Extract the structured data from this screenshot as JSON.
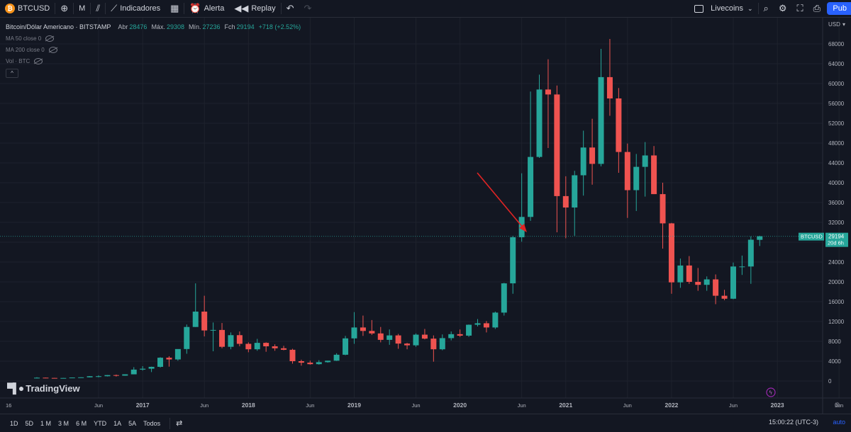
{
  "toolbar": {
    "symbol": "BTCUSD",
    "symbol_logo": "₿",
    "interval": "M",
    "indicators_label": "Indicadores",
    "alert_label": "Alerta",
    "replay_label": "Replay",
    "layout_name": "Livecoins",
    "publish_label": "Pub"
  },
  "legend": {
    "title": "Bitcoin/Dólar Americano · BITSTAMP",
    "open_label": "Abr",
    "open": "28476",
    "high_label": "Máx.",
    "high": "29308",
    "low_label": "Mín.",
    "low": "27236",
    "close_label": "Fch",
    "close": "29194",
    "change": "+718 (+2.52%)",
    "indicators": [
      "MA 50 close 0",
      "MA 200 close 0",
      "Vol · BTC"
    ],
    "collapse_symbol": "^"
  },
  "price_axis": {
    "currency": "USD",
    "ticks": [
      "68000",
      "64000",
      "60000",
      "56000",
      "52000",
      "48000",
      "44000",
      "40000",
      "36000",
      "32000",
      "28000",
      "24000",
      "20000",
      "16000",
      "12000",
      "8000",
      "4000",
      "0"
    ],
    "price_label": "BTCUSD",
    "last_price": "29194",
    "countdown": "20d 6h"
  },
  "time_axis": {
    "labels": [
      "16",
      "Jun",
      "2017",
      "Jun",
      "2018",
      "Jun",
      "2019",
      "Jun",
      "2020",
      "Jun",
      "2021",
      "Jun",
      "2022",
      "Jun",
      "2023",
      "Jun"
    ]
  },
  "bottom": {
    "timeframes": [
      "1D",
      "5D",
      "1 M",
      "3 M",
      "6 M",
      "YTD",
      "1A",
      "5A",
      "Todos"
    ],
    "clock": "15:00:22 (UTC-3)",
    "auto_label": "auto"
  },
  "branding": "TradingView",
  "colors": {
    "up": "#26a69a",
    "down": "#ef5350",
    "bg": "#131722",
    "grid": "#1e222d",
    "accent": "#2962ff",
    "annotation_arrow": "#e02424"
  },
  "chart_data": {
    "type": "candlestick",
    "title": "Bitcoin/Dólar Americano · BITSTAMP",
    "interval": "1M",
    "ylim": [
      0,
      70000
    ],
    "grid": true,
    "annotation": "red arrow pointing to Jan 2021 candle",
    "last_price": 29194,
    "candles": [
      {
        "t": "2016-06",
        "o": 520,
        "h": 770,
        "l": 520,
        "c": 670
      },
      {
        "t": "2016-07",
        "o": 670,
        "h": 690,
        "l": 600,
        "c": 620
      },
      {
        "t": "2016-08",
        "o": 620,
        "h": 630,
        "l": 540,
        "c": 575
      },
      {
        "t": "2016-09",
        "o": 575,
        "h": 620,
        "l": 580,
        "c": 610
      },
      {
        "t": "2016-10",
        "o": 610,
        "h": 720,
        "l": 600,
        "c": 700
      },
      {
        "t": "2016-11",
        "o": 700,
        "h": 760,
        "l": 690,
        "c": 745
      },
      {
        "t": "2016-12",
        "o": 745,
        "h": 980,
        "l": 740,
        "c": 965
      },
      {
        "t": "2017-01",
        "o": 965,
        "h": 1150,
        "l": 750,
        "c": 965
      },
      {
        "t": "2017-02",
        "o": 965,
        "h": 1200,
        "l": 920,
        "c": 1190
      },
      {
        "t": "2017-03",
        "o": 1190,
        "h": 1300,
        "l": 900,
        "c": 1080
      },
      {
        "t": "2017-04",
        "o": 1080,
        "h": 1360,
        "l": 1060,
        "c": 1350
      },
      {
        "t": "2017-05",
        "o": 1350,
        "h": 2800,
        "l": 1350,
        "c": 2300
      },
      {
        "t": "2017-06",
        "o": 2300,
        "h": 3000,
        "l": 2100,
        "c": 2480
      },
      {
        "t": "2017-07",
        "o": 2480,
        "h": 2900,
        "l": 1800,
        "c": 2860
      },
      {
        "t": "2017-08",
        "o": 2860,
        "h": 4800,
        "l": 2700,
        "c": 4700
      },
      {
        "t": "2017-09",
        "o": 4700,
        "h": 5000,
        "l": 2900,
        "c": 4350
      },
      {
        "t": "2017-10",
        "o": 4350,
        "h": 6400,
        "l": 4100,
        "c": 6450
      },
      {
        "t": "2017-11",
        "o": 6450,
        "h": 11400,
        "l": 5500,
        "c": 10900
      },
      {
        "t": "2017-12",
        "o": 10900,
        "h": 19700,
        "l": 10900,
        "c": 14000
      },
      {
        "t": "2018-01",
        "o": 14000,
        "h": 17200,
        "l": 9000,
        "c": 10200
      },
      {
        "t": "2018-02",
        "o": 10200,
        "h": 11800,
        "l": 6000,
        "c": 10300
      },
      {
        "t": "2018-03",
        "o": 10300,
        "h": 11700,
        "l": 6600,
        "c": 6900
      },
      {
        "t": "2018-04",
        "o": 6900,
        "h": 9800,
        "l": 6400,
        "c": 9250
      },
      {
        "t": "2018-05",
        "o": 9250,
        "h": 10000,
        "l": 7000,
        "c": 7500
      },
      {
        "t": "2018-06",
        "o": 7500,
        "h": 7800,
        "l": 5800,
        "c": 6400
      },
      {
        "t": "2018-07",
        "o": 6400,
        "h": 8500,
        "l": 6100,
        "c": 7700
      },
      {
        "t": "2018-08",
        "o": 7700,
        "h": 7800,
        "l": 5900,
        "c": 7000
      },
      {
        "t": "2018-09",
        "o": 7000,
        "h": 7400,
        "l": 6100,
        "c": 6600
      },
      {
        "t": "2018-10",
        "o": 6600,
        "h": 7100,
        "l": 6200,
        "c": 6300
      },
      {
        "t": "2018-11",
        "o": 6300,
        "h": 6500,
        "l": 3500,
        "c": 4000
      },
      {
        "t": "2018-12",
        "o": 4000,
        "h": 4300,
        "l": 3100,
        "c": 3700
      },
      {
        "t": "2019-01",
        "o": 3700,
        "h": 4100,
        "l": 3300,
        "c": 3400
      },
      {
        "t": "2019-02",
        "o": 3400,
        "h": 4200,
        "l": 3300,
        "c": 3800
      },
      {
        "t": "2019-03",
        "o": 3800,
        "h": 4100,
        "l": 3700,
        "c": 4100
      },
      {
        "t": "2019-04",
        "o": 4100,
        "h": 5600,
        "l": 4050,
        "c": 5300
      },
      {
        "t": "2019-05",
        "o": 5300,
        "h": 9100,
        "l": 5200,
        "c": 8600
      },
      {
        "t": "2019-06",
        "o": 8600,
        "h": 13900,
        "l": 7500,
        "c": 10800
      },
      {
        "t": "2019-07",
        "o": 10800,
        "h": 13200,
        "l": 9100,
        "c": 10100
      },
      {
        "t": "2019-08",
        "o": 10100,
        "h": 12300,
        "l": 9300,
        "c": 9600
      },
      {
        "t": "2019-09",
        "o": 9600,
        "h": 10900,
        "l": 7800,
        "c": 8300
      },
      {
        "t": "2019-10",
        "o": 8300,
        "h": 10400,
        "l": 7300,
        "c": 9200
      },
      {
        "t": "2019-11",
        "o": 9200,
        "h": 9500,
        "l": 6500,
        "c": 7550
      },
      {
        "t": "2019-12",
        "o": 7550,
        "h": 7700,
        "l": 6400,
        "c": 7200
      },
      {
        "t": "2020-01",
        "o": 7200,
        "h": 9600,
        "l": 6900,
        "c": 9350
      },
      {
        "t": "2020-02",
        "o": 9350,
        "h": 10500,
        "l": 8400,
        "c": 8550
      },
      {
        "t": "2020-03",
        "o": 8550,
        "h": 9200,
        "l": 3900,
        "c": 6400
      },
      {
        "t": "2020-04",
        "o": 6400,
        "h": 9400,
        "l": 6200,
        "c": 8650
      },
      {
        "t": "2020-05",
        "o": 8650,
        "h": 10000,
        "l": 8200,
        "c": 9450
      },
      {
        "t": "2020-06",
        "o": 9450,
        "h": 10400,
        "l": 8900,
        "c": 9150
      },
      {
        "t": "2020-07",
        "o": 9150,
        "h": 11400,
        "l": 8900,
        "c": 11350
      },
      {
        "t": "2020-08",
        "o": 11350,
        "h": 12500,
        "l": 11000,
        "c": 11650
      },
      {
        "t": "2020-09",
        "o": 11650,
        "h": 12100,
        "l": 9800,
        "c": 10800
      },
      {
        "t": "2020-10",
        "o": 10800,
        "h": 14000,
        "l": 10500,
        "c": 13800
      },
      {
        "t": "2020-11",
        "o": 13800,
        "h": 19800,
        "l": 13200,
        "c": 19700
      },
      {
        "t": "2020-12",
        "o": 19700,
        "h": 29300,
        "l": 17600,
        "c": 29000
      },
      {
        "t": "2021-01",
        "o": 29000,
        "h": 41900,
        "l": 28100,
        "c": 33100
      },
      {
        "t": "2021-02",
        "o": 33100,
        "h": 58400,
        "l": 32300,
        "c": 45200
      },
      {
        "t": "2021-03",
        "o": 45200,
        "h": 61800,
        "l": 45000,
        "c": 58800
      },
      {
        "t": "2021-04",
        "o": 58800,
        "h": 64900,
        "l": 47000,
        "c": 57800
      },
      {
        "t": "2021-05",
        "o": 57800,
        "h": 59600,
        "l": 30000,
        "c": 37300
      },
      {
        "t": "2021-06",
        "o": 37300,
        "h": 41300,
        "l": 28800,
        "c": 35000
      },
      {
        "t": "2021-07",
        "o": 35000,
        "h": 42400,
        "l": 29300,
        "c": 41500
      },
      {
        "t": "2021-08",
        "o": 41500,
        "h": 50500,
        "l": 37400,
        "c": 47100
      },
      {
        "t": "2021-09",
        "o": 47100,
        "h": 52900,
        "l": 39600,
        "c": 43800
      },
      {
        "t": "2021-10",
        "o": 43800,
        "h": 67000,
        "l": 43300,
        "c": 61300
      },
      {
        "t": "2021-11",
        "o": 61300,
        "h": 69000,
        "l": 53500,
        "c": 57000
      },
      {
        "t": "2021-12",
        "o": 57000,
        "h": 59100,
        "l": 42000,
        "c": 46200
      },
      {
        "t": "2022-01",
        "o": 46200,
        "h": 47900,
        "l": 32900,
        "c": 38500
      },
      {
        "t": "2022-02",
        "o": 38500,
        "h": 45800,
        "l": 34300,
        "c": 43200
      },
      {
        "t": "2022-03",
        "o": 43200,
        "h": 48200,
        "l": 37200,
        "c": 45500
      },
      {
        "t": "2022-04",
        "o": 45500,
        "h": 47400,
        "l": 37700,
        "c": 37700
      },
      {
        "t": "2022-05",
        "o": 37700,
        "h": 40000,
        "l": 26700,
        "c": 31800
      },
      {
        "t": "2022-06",
        "o": 31800,
        "h": 31900,
        "l": 17600,
        "c": 19900
      },
      {
        "t": "2022-07",
        "o": 19900,
        "h": 24700,
        "l": 18800,
        "c": 23300
      },
      {
        "t": "2022-08",
        "o": 23300,
        "h": 25200,
        "l": 19600,
        "c": 20000
      },
      {
        "t": "2022-09",
        "o": 20000,
        "h": 22800,
        "l": 18200,
        "c": 19400
      },
      {
        "t": "2022-10",
        "o": 19400,
        "h": 21100,
        "l": 18200,
        "c": 20500
      },
      {
        "t": "2022-11",
        "o": 20500,
        "h": 21500,
        "l": 15500,
        "c": 17200
      },
      {
        "t": "2022-12",
        "o": 17200,
        "h": 18400,
        "l": 16300,
        "c": 16600
      },
      {
        "t": "2023-01",
        "o": 16600,
        "h": 23900,
        "l": 16500,
        "c": 23100
      },
      {
        "t": "2023-02",
        "o": 23100,
        "h": 25300,
        "l": 21400,
        "c": 23100
      },
      {
        "t": "2023-03",
        "o": 23100,
        "h": 29200,
        "l": 19600,
        "c": 28500
      },
      {
        "t": "2023-04",
        "o": 28476,
        "h": 29308,
        "l": 27236,
        "c": 29194
      }
    ]
  }
}
